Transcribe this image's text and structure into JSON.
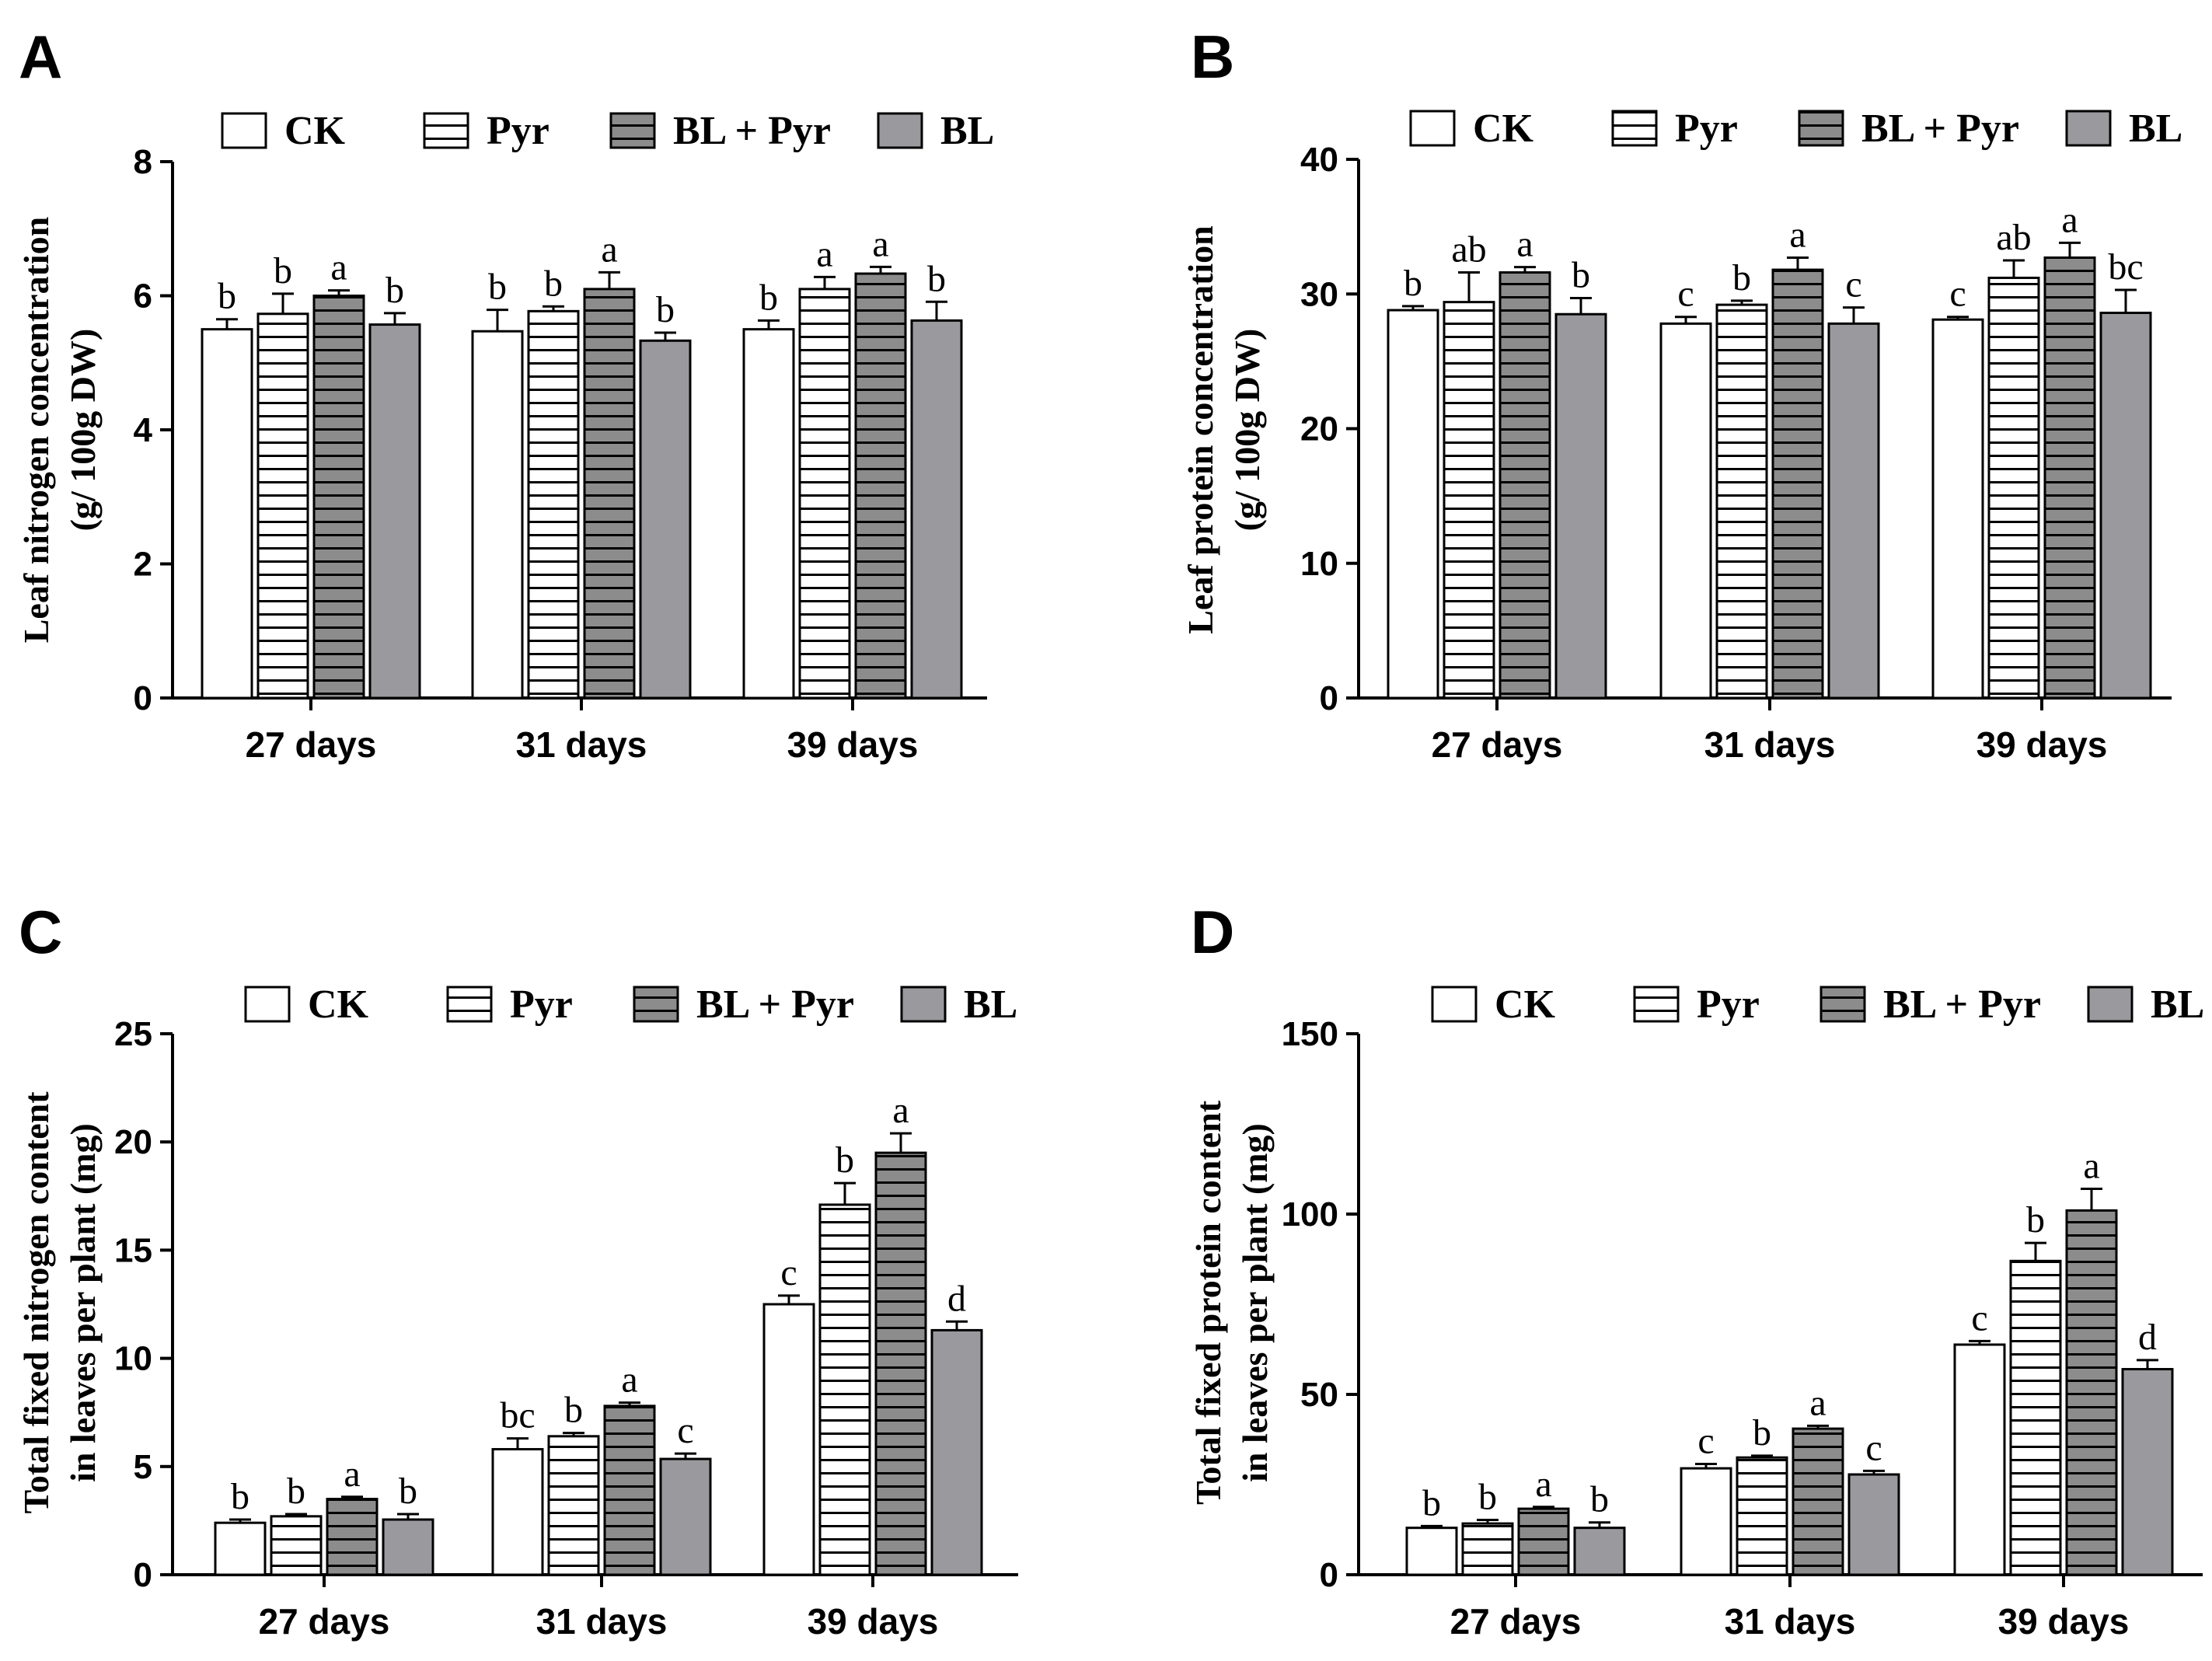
{
  "legend": {
    "entries": [
      "CK",
      "Pyr",
      "BL + Pyr",
      "BL"
    ]
  },
  "series_styles": [
    {
      "name": "CK",
      "fill": "#ffffff",
      "hatch": false
    },
    {
      "name": "Pyr",
      "fill": "#ffffff",
      "hatch": true
    },
    {
      "name": "BL + Pyr",
      "fill": "#8c8c8c",
      "hatch": true
    },
    {
      "name": "BL",
      "fill": "#9a9a9e",
      "hatch": false
    }
  ],
  "chart_data": [
    {
      "panel": "A",
      "type": "bar",
      "categories": [
        "27 days",
        "31 days",
        "39 days"
      ],
      "ylabel_lines": [
        "Leaf nitrogen concentration",
        "(g/ 100g DW)"
      ],
      "ylim": [
        0,
        8
      ],
      "yticks": [
        0,
        2,
        4,
        6,
        8
      ],
      "series": [
        {
          "name": "CK",
          "values": [
            5.5,
            5.47,
            5.5
          ],
          "errors": [
            0.15,
            0.32,
            0.13
          ],
          "letters": [
            "b",
            "b",
            "b"
          ]
        },
        {
          "name": "Pyr",
          "values": [
            5.73,
            5.77,
            6.1
          ],
          "errors": [
            0.3,
            0.07,
            0.18
          ],
          "letters": [
            "b",
            "b",
            "a"
          ]
        },
        {
          "name": "BL + Pyr",
          "values": [
            6.0,
            6.1,
            6.33
          ],
          "errors": [
            0.08,
            0.25,
            0.1
          ],
          "letters": [
            "a",
            "a",
            "a"
          ]
        },
        {
          "name": "BL",
          "values": [
            5.57,
            5.33,
            5.63
          ],
          "errors": [
            0.17,
            0.12,
            0.28
          ],
          "letters": [
            "b",
            "b",
            "b"
          ]
        }
      ]
    },
    {
      "panel": "B",
      "type": "bar",
      "categories": [
        "27 days",
        "31 days",
        "39 days"
      ],
      "ylabel_lines": [
        "Leaf protein concentration",
        "(g/ 100g DW)"
      ],
      "ylim": [
        0,
        40
      ],
      "yticks": [
        0,
        10,
        20,
        30,
        40
      ],
      "series": [
        {
          "name": "CK",
          "values": [
            28.8,
            27.8,
            28.1
          ],
          "errors": [
            0.3,
            0.5,
            0.2
          ],
          "letters": [
            "b",
            "c",
            "c"
          ]
        },
        {
          "name": "Pyr",
          "values": [
            29.4,
            29.2,
            31.2
          ],
          "errors": [
            2.2,
            0.3,
            1.3
          ],
          "letters": [
            "ab",
            "b",
            "ab"
          ]
        },
        {
          "name": "BL + Pyr",
          "values": [
            31.6,
            31.8,
            32.7
          ],
          "errors": [
            0.4,
            0.9,
            1.1
          ],
          "letters": [
            "a",
            "a",
            "a"
          ]
        },
        {
          "name": "BL",
          "values": [
            28.5,
            27.8,
            28.6
          ],
          "errors": [
            1.2,
            1.2,
            1.7
          ],
          "letters": [
            "b",
            "c",
            "bc"
          ]
        }
      ]
    },
    {
      "panel": "C",
      "type": "bar",
      "categories": [
        "27 days",
        "31 days",
        "39 days"
      ],
      "ylabel_lines": [
        "Total fixed nitrogen content",
        "in leaves per plant (mg)"
      ],
      "ylim": [
        0,
        25
      ],
      "yticks": [
        0,
        5,
        10,
        15,
        20,
        25
      ],
      "series": [
        {
          "name": "CK",
          "values": [
            2.4,
            5.8,
            12.5
          ],
          "errors": [
            0.15,
            0.5,
            0.4
          ],
          "letters": [
            "b",
            "bc",
            "c"
          ]
        },
        {
          "name": "Pyr",
          "values": [
            2.7,
            6.4,
            17.1
          ],
          "errors": [
            0.1,
            0.15,
            1.0
          ],
          "letters": [
            "b",
            "b",
            "b"
          ]
        },
        {
          "name": "BL + Pyr",
          "values": [
            3.5,
            7.8,
            19.5
          ],
          "errors": [
            0.1,
            0.15,
            0.9
          ],
          "letters": [
            "a",
            "a",
            "a"
          ]
        },
        {
          "name": "BL",
          "values": [
            2.55,
            5.35,
            11.3
          ],
          "errors": [
            0.25,
            0.25,
            0.4
          ],
          "letters": [
            "b",
            "c",
            "d"
          ]
        }
      ]
    },
    {
      "panel": "D",
      "type": "bar",
      "categories": [
        "27 days",
        "31 days",
        "39 days"
      ],
      "ylabel_lines": [
        "Total fixed protein content",
        "in leaves per plant (mg)"
      ],
      "ylim": [
        0,
        150
      ],
      "yticks": [
        0,
        50,
        100,
        150
      ],
      "series": [
        {
          "name": "CK",
          "values": [
            13,
            29.5,
            63.8
          ],
          "errors": [
            0.5,
            1.2,
            1.0
          ],
          "letters": [
            "b",
            "c",
            "c"
          ]
        },
        {
          "name": "Pyr",
          "values": [
            14.2,
            32.5,
            87
          ],
          "errors": [
            1.0,
            0.5,
            5.0
          ],
          "letters": [
            "b",
            "b",
            "b"
          ]
        },
        {
          "name": "BL + Pyr",
          "values": [
            18.3,
            40.5,
            101
          ],
          "errors": [
            0.5,
            0.8,
            6.0
          ],
          "letters": [
            "a",
            "a",
            "a"
          ]
        },
        {
          "name": "BL",
          "values": [
            13,
            27.8,
            57
          ],
          "errors": [
            1.5,
            1.0,
            2.5
          ],
          "letters": [
            "b",
            "c",
            "d"
          ]
        }
      ]
    }
  ]
}
